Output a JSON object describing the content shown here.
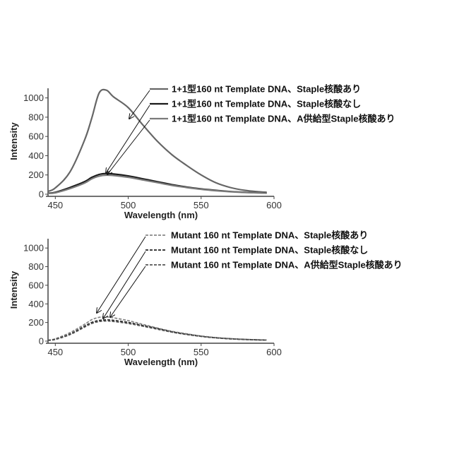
{
  "chart_data": [
    {
      "type": "line",
      "xlabel": "Wavelength (nm)",
      "ylabel": "Intensity",
      "xlim": [
        445,
        600
      ],
      "ylim": [
        0,
        1100
      ],
      "x_ticks": [
        450,
        500,
        550,
        600
      ],
      "y_ticks": [
        0,
        200,
        400,
        600,
        800,
        1000
      ],
      "grid": false,
      "legend_position": "top-right",
      "x": [
        445,
        450,
        460,
        470,
        475,
        480,
        485,
        490,
        500,
        510,
        520,
        530,
        540,
        550,
        560,
        570,
        580,
        590,
        595
      ],
      "series": [
        {
          "name": "1+1型160 nt Template DNA、Staple核酸あり",
          "values": [
            30,
            65,
            230,
            560,
            790,
            1050,
            1080,
            1010,
            900,
            720,
            550,
            410,
            300,
            200,
            120,
            70,
            40,
            25,
            20
          ],
          "color": "#666666",
          "dash": "solid"
        },
        {
          "name": "1+1型160 nt Template DNA、Staple核酸なし",
          "values": [
            10,
            20,
            70,
            130,
            175,
            205,
            215,
            210,
            190,
            160,
            130,
            100,
            75,
            55,
            40,
            28,
            20,
            15,
            12
          ],
          "color": "#1a1a1a",
          "dash": "solid"
        },
        {
          "name": "1+1型160 nt Template DNA、A供給型Staple核酸あり",
          "values": [
            8,
            15,
            58,
            115,
            160,
            188,
            198,
            194,
            176,
            148,
            120,
            92,
            70,
            51,
            37,
            26,
            18,
            14,
            11
          ],
          "color": "#7a7a7a",
          "dash": "solid"
        }
      ]
    },
    {
      "type": "line",
      "xlabel": "Wavelength (nm)",
      "ylabel": "Intensity",
      "xlim": [
        445,
        600
      ],
      "ylim": [
        0,
        1100
      ],
      "x_ticks": [
        450,
        500,
        550,
        600
      ],
      "y_ticks": [
        0,
        200,
        400,
        600,
        800,
        1000
      ],
      "grid": false,
      "legend_position": "top-right",
      "x": [
        445,
        450,
        460,
        470,
        475,
        480,
        485,
        490,
        500,
        510,
        520,
        530,
        540,
        550,
        560,
        570,
        580,
        590,
        595
      ],
      "series": [
        {
          "name": "Mutant 160 nt Template DNA、Staple核酸あり",
          "values": [
            10,
            25,
            90,
            180,
            230,
            255,
            260,
            250,
            220,
            180,
            140,
            105,
            78,
            55,
            38,
            27,
            19,
            14,
            12
          ],
          "color": "#888888",
          "dash": "dashed"
        },
        {
          "name": "Mutant 160 nt Template DNA、Staple核酸なし",
          "values": [
            9,
            20,
            75,
            160,
            200,
            222,
            228,
            223,
            200,
            168,
            135,
            100,
            74,
            52,
            36,
            25,
            18,
            13,
            11
          ],
          "color": "#222222",
          "dash": "dashed"
        },
        {
          "name": "Mutant 160 nt Template DNA、A供給型Staple核酸あり",
          "values": [
            8,
            18,
            70,
            150,
            190,
            210,
            216,
            211,
            190,
            160,
            128,
            96,
            71,
            50,
            35,
            24,
            17,
            12,
            10
          ],
          "color": "#555555",
          "dash": "dashed"
        }
      ]
    }
  ]
}
